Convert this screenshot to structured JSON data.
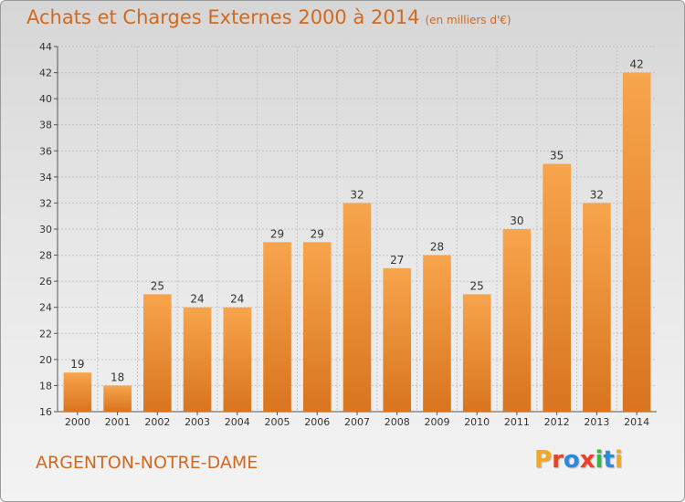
{
  "header": {
    "title": "Achats et Charges Externes 2000 à 2014",
    "subtitle": "(en milliers d'€)"
  },
  "footer": {
    "city": "ARGENTON-NOTRE-DAME",
    "logo_text": "Proxiti",
    "logo_colors": [
      "#f5a623",
      "#e8442a",
      "#2e86de",
      "#e8442a",
      "#3bb54a",
      "#2e86de",
      "#f5a623"
    ]
  },
  "chart_data": {
    "type": "bar",
    "title": "Achats et Charges Externes 2000 à 2014",
    "subtitle": "(en milliers d'€)",
    "xlabel": "",
    "ylabel": "",
    "categories": [
      "2000",
      "2001",
      "2002",
      "2003",
      "2004",
      "2005",
      "2006",
      "2007",
      "2008",
      "2009",
      "2010",
      "2011",
      "2012",
      "2013",
      "2014"
    ],
    "values": [
      19,
      18,
      25,
      24,
      24,
      29,
      29,
      32,
      27,
      28,
      25,
      30,
      35,
      32,
      42
    ],
    "ylim": [
      16,
      44
    ],
    "yticks": [
      16,
      18,
      20,
      22,
      24,
      26,
      28,
      30,
      32,
      34,
      36,
      38,
      40,
      42,
      44
    ],
    "grid": true,
    "legend": "none",
    "bar_color_top": "#f7a54d",
    "bar_color_bottom": "#d9741f"
  }
}
